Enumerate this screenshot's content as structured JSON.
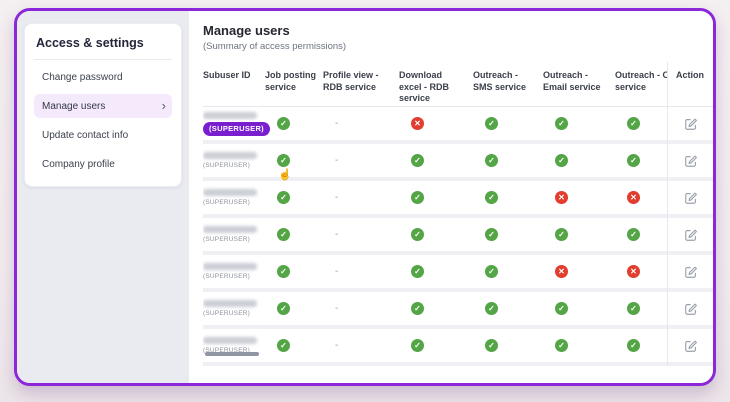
{
  "sidebar": {
    "title": "Access & settings",
    "chevron_icon": "›",
    "items": [
      {
        "label": "Change password",
        "active": false
      },
      {
        "label": "Manage users",
        "active": true
      },
      {
        "label": "Update contact info",
        "active": false
      },
      {
        "label": "Company profile",
        "active": false
      }
    ]
  },
  "main": {
    "title": "Manage users",
    "subtitle": "(Summary of access permissions)",
    "table": {
      "columns": [
        "Subuser ID",
        "Job posting service",
        "Profile view - RDB service",
        "Download excel - RDB service",
        "Outreach - SMS service",
        "Outreach - Email service",
        "Outreach - Chat service",
        "Action"
      ],
      "granted_glyph": "✓",
      "denied_glyph": "✕",
      "none_glyph": "-",
      "cursor_glyph": "☝",
      "action_icon": "edit-note-icon",
      "superuser_label": "(SUPERUSER)",
      "rows": [
        {
          "subuser_id_redacted": true,
          "badge_style": "pill",
          "permissions": [
            "granted",
            "none",
            "denied",
            "granted",
            "granted",
            "granted"
          ]
        },
        {
          "subuser_id_redacted": true,
          "badge_style": "text",
          "cursor": true,
          "permissions": [
            "granted",
            "none",
            "granted",
            "granted",
            "granted",
            "granted"
          ]
        },
        {
          "subuser_id_redacted": true,
          "badge_style": "text",
          "permissions": [
            "granted",
            "none",
            "granted",
            "granted",
            "denied",
            "denied"
          ]
        },
        {
          "subuser_id_redacted": true,
          "badge_style": "text",
          "permissions": [
            "granted",
            "none",
            "granted",
            "granted",
            "granted",
            "granted"
          ]
        },
        {
          "subuser_id_redacted": true,
          "badge_style": "text",
          "permissions": [
            "granted",
            "none",
            "granted",
            "granted",
            "denied",
            "denied"
          ]
        },
        {
          "subuser_id_redacted": true,
          "badge_style": "text",
          "permissions": [
            "granted",
            "none",
            "granted",
            "granted",
            "granted",
            "granted"
          ]
        },
        {
          "subuser_id_redacted": true,
          "badge_style": "text",
          "permissions": [
            "granted",
            "none",
            "granted",
            "granted",
            "granted",
            "granted"
          ]
        }
      ]
    }
  },
  "colors": {
    "frame_border": "#8b27d8",
    "panel_bg": "#e9ebf1",
    "active_item_bg": "#f4eafb",
    "accent_purple": "#7a1fd0",
    "granted_green": "#53a546",
    "denied_red": "#e23d2e",
    "divider": "#e6e8ec",
    "row_gap": "#eef0f4",
    "text_dark": "#24272e",
    "text_gray": "#6d7380",
    "icon_gray": "#9aa1ac"
  }
}
